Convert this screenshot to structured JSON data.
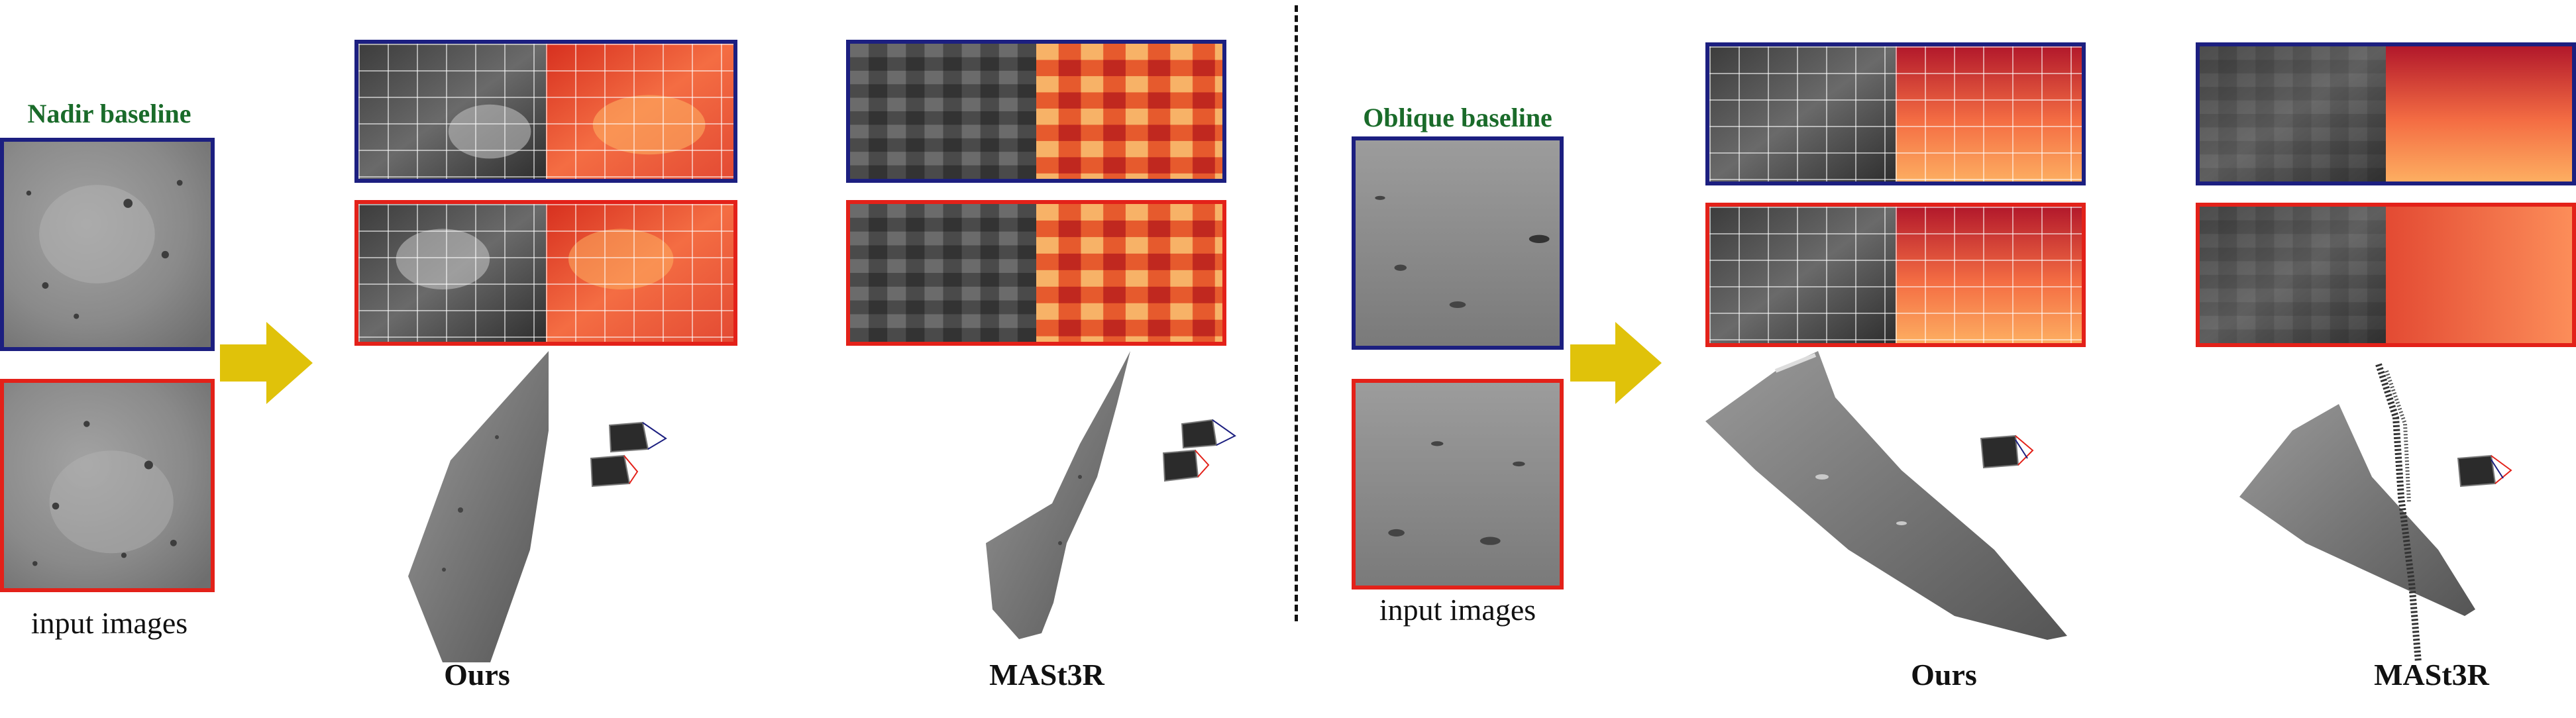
{
  "left_panel": {
    "baseline_label": "Nadir baseline",
    "input_label": "input images",
    "method_labels": [
      "Ours",
      "MASt3R"
    ]
  },
  "right_panel": {
    "baseline_label": "Oblique baseline",
    "input_label": "input images",
    "method_labels": [
      "Ours",
      "MASt3R"
    ]
  },
  "colors": {
    "frame_view1": "#1c1f80",
    "frame_view2": "#e32119",
    "baseline_label": "#1a6b2a",
    "arrow": "#e0c20a",
    "heatmap_low": "#a50f15",
    "heatmap_high": "#fdae61"
  },
  "icons": [
    "right-arrow-icon",
    "camera-frustum-icon"
  ]
}
